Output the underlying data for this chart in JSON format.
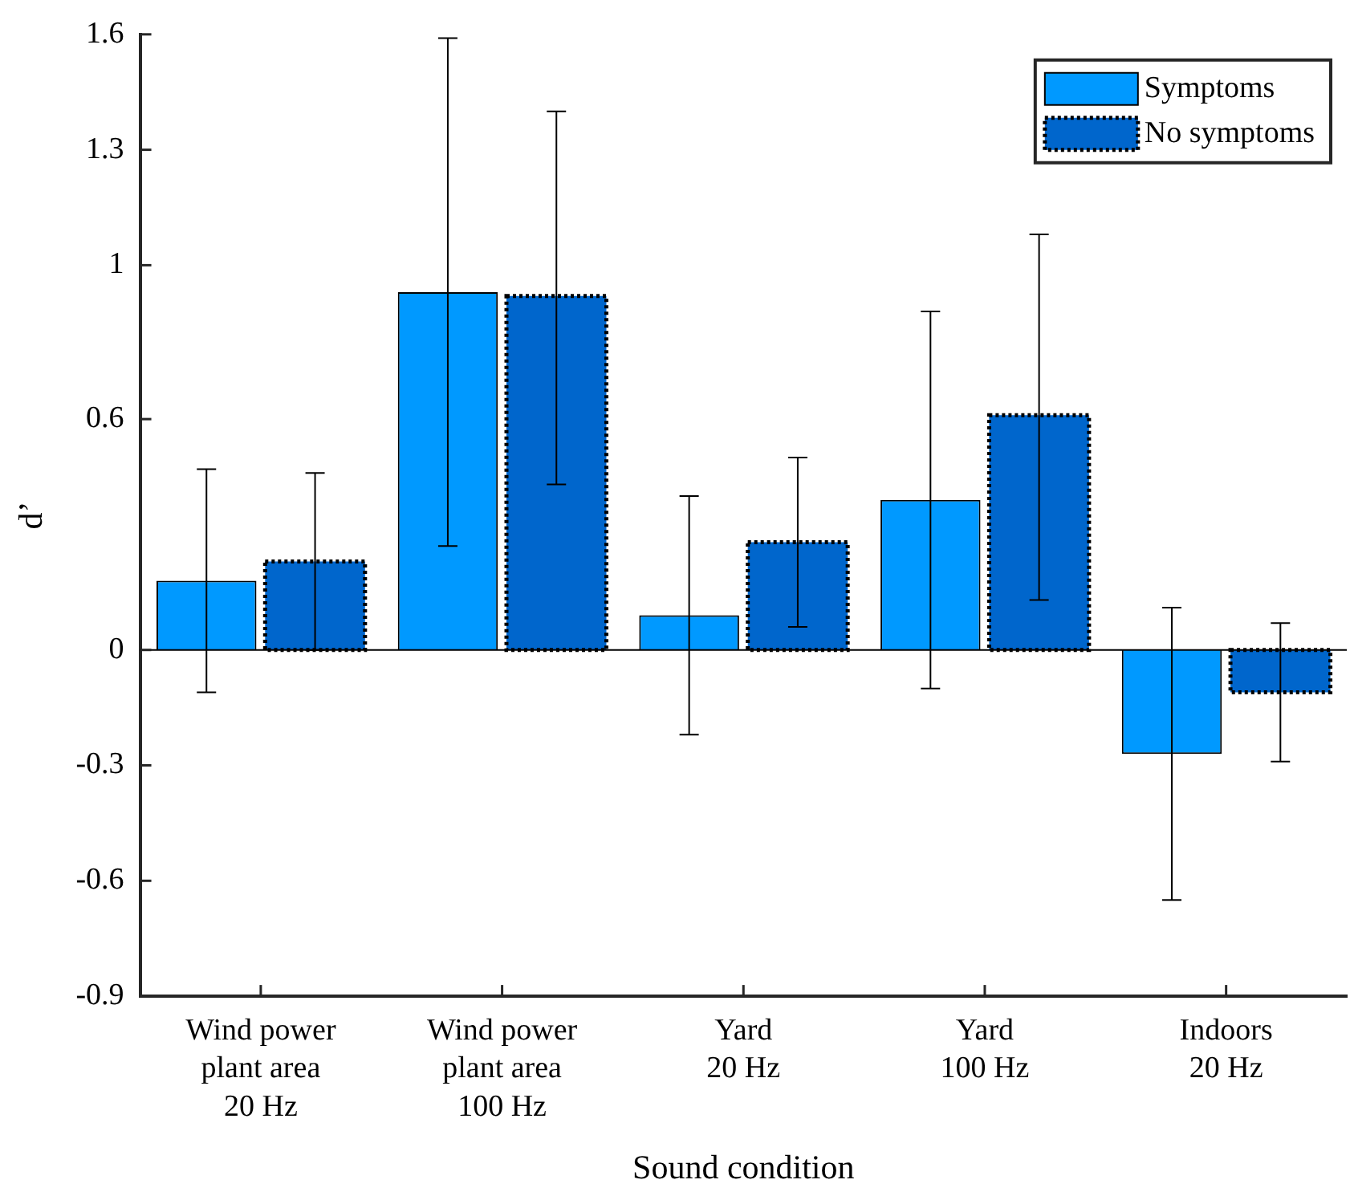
{
  "chart_data": {
    "type": "bar",
    "xlabel": "Sound condition",
    "ylabel": "d’",
    "categories": [
      "Wind power\nplant area\n20 Hz",
      "Wind power\nplant area\n100 Hz",
      "Yard\n20 Hz",
      "Yard\n100 Hz",
      "Indoors\n20 Hz"
    ],
    "series": [
      {
        "name": "Symptoms",
        "color": "#0099ff",
        "values": [
          0.18,
          0.93,
          0.09,
          0.39,
          -0.27
        ],
        "errors": [
          [
            -0.11,
            0.47
          ],
          [
            0.27,
            1.59
          ],
          [
            -0.22,
            0.4
          ],
          [
            -0.1,
            0.88
          ],
          [
            -0.65,
            0.11
          ]
        ]
      },
      {
        "name": "No symptoms",
        "color": "#0066cc",
        "line_style": "dotted",
        "values": [
          0.23,
          0.92,
          0.28,
          0.61,
          -0.11
        ],
        "errors": [
          [
            0,
            0.46
          ],
          [
            0.43,
            1.4
          ],
          [
            0.06,
            0.5
          ],
          [
            0.13,
            1.08
          ],
          [
            -0.29,
            0.07
          ]
        ]
      }
    ],
    "ylim": [
      -0.9,
      1.6
    ],
    "yticks": [
      -0.9,
      -0.6,
      -0.3,
      0,
      0.6,
      1,
      1.3,
      1.6
    ],
    "ref_lines": [
      {
        "axis": "y",
        "value": 0
      }
    ],
    "grid": false,
    "legend": "top right"
  }
}
